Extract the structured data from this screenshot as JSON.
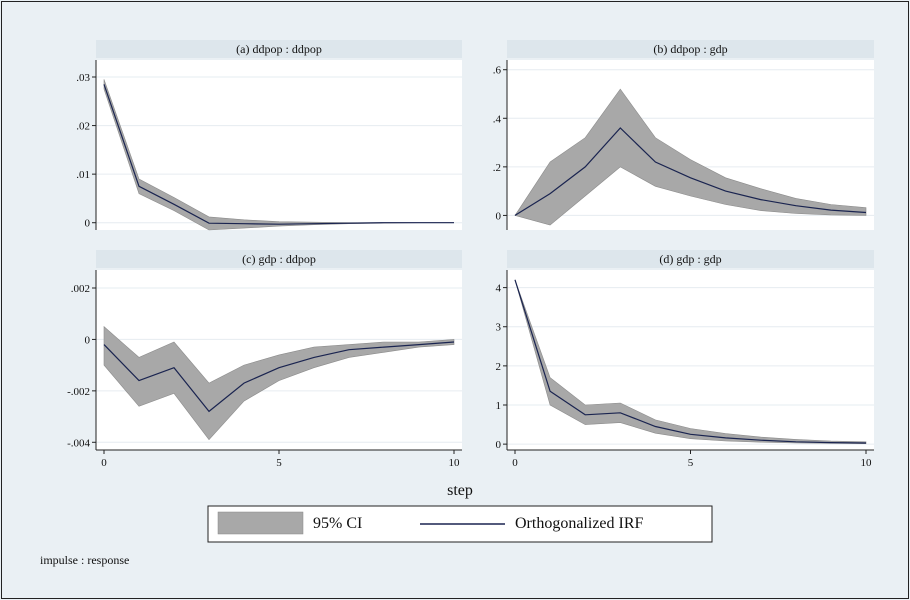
{
  "colors": {
    "page_bg": "#eaf0f4",
    "plot_bg": "#ffffff",
    "strip_bg": "#dde6ec",
    "ci_fill": "#a8a8a8",
    "line": "#1a2450",
    "grid": "#e6ecf0"
  },
  "x_axis_label": "step",
  "note": "impulse : response",
  "legend": {
    "ci_label": "95% CI",
    "line_label": "Orthogonalized IRF",
    "position": "bottom"
  },
  "chart_data": [
    {
      "type": "area",
      "title": "(a) ddpop : ddpop",
      "x": [
        0,
        1,
        2,
        3,
        4,
        5,
        6,
        7,
        8,
        9,
        10
      ],
      "irf": [
        0.0285,
        0.0075,
        0.0038,
        -0.0001,
        -0.0002,
        -0.0003,
        -0.0002,
        -0.0001,
        0.0,
        0.0,
        0.0
      ],
      "lower": [
        0.0275,
        0.006,
        0.0025,
        -0.0015,
        -0.0011,
        -0.0007,
        -0.0004,
        -0.0002,
        -0.0001,
        0.0,
        0.0
      ],
      "upper": [
        0.0295,
        0.009,
        0.0052,
        0.0012,
        0.0006,
        0.0002,
        0.0001,
        0.0,
        0.0,
        0.0,
        0.0
      ],
      "ylim": [
        -0.0015,
        0.0335
      ],
      "yticks": [
        0,
        0.01,
        0.02,
        0.03
      ],
      "ytick_labels": [
        "0",
        ".01",
        ".02",
        ".03"
      ],
      "xticks": [
        0,
        5,
        10
      ],
      "xtick_labels": [
        "0",
        "5",
        "10"
      ],
      "show_x_ticks": false
    },
    {
      "type": "area",
      "title": "(b) ddpop : gdp",
      "x": [
        0,
        1,
        2,
        3,
        4,
        5,
        6,
        7,
        8,
        9,
        10
      ],
      "irf": [
        0,
        0.09,
        0.2,
        0.36,
        0.22,
        0.155,
        0.1,
        0.065,
        0.04,
        0.022,
        0.012
      ],
      "lower": [
        0,
        -0.04,
        0.08,
        0.2,
        0.12,
        0.08,
        0.045,
        0.02,
        0.008,
        0.002,
        0.0
      ],
      "upper": [
        0,
        0.22,
        0.32,
        0.52,
        0.32,
        0.23,
        0.155,
        0.11,
        0.07,
        0.045,
        0.032
      ],
      "ylim": [
        -0.06,
        0.64
      ],
      "yticks": [
        0,
        0.2,
        0.4,
        0.6
      ],
      "ytick_labels": [
        "0",
        ".2",
        ".4",
        ".6"
      ],
      "xticks": [
        0,
        5,
        10
      ],
      "xtick_labels": [
        "0",
        "5",
        "10"
      ],
      "show_x_ticks": false
    },
    {
      "type": "area",
      "title": "(c) gdp : ddpop",
      "x": [
        0,
        1,
        2,
        3,
        4,
        5,
        6,
        7,
        8,
        9,
        10
      ],
      "irf": [
        -0.0002,
        -0.0016,
        -0.0011,
        -0.0028,
        -0.0017,
        -0.0011,
        -0.0007,
        -0.0004,
        -0.0003,
        -0.0002,
        -0.0001
      ],
      "lower": [
        -0.001,
        -0.0026,
        -0.0021,
        -0.0039,
        -0.0024,
        -0.0016,
        -0.0011,
        -0.0007,
        -0.0005,
        -0.0003,
        -0.0002
      ],
      "upper": [
        0.0005,
        -0.0007,
        -0.0001,
        -0.0017,
        -0.001,
        -0.0006,
        -0.0003,
        -0.0002,
        -0.0001,
        -0.0001,
        0.0
      ],
      "ylim": [
        -0.0043,
        0.0027
      ],
      "yticks": [
        -0.004,
        -0.002,
        0,
        0.002
      ],
      "ytick_labels": [
        "-.004",
        "-.002",
        "0",
        ".002"
      ],
      "xticks": [
        0,
        5,
        10
      ],
      "xtick_labels": [
        "0",
        "5",
        "10"
      ],
      "show_x_ticks": true
    },
    {
      "type": "area",
      "title": "(d) gdp : gdp",
      "x": [
        0,
        1,
        2,
        3,
        4,
        5,
        6,
        7,
        8,
        9,
        10
      ],
      "irf": [
        4.2,
        1.35,
        0.75,
        0.8,
        0.45,
        0.25,
        0.16,
        0.1,
        0.06,
        0.04,
        0.03
      ],
      "lower": [
        4.2,
        1.0,
        0.5,
        0.55,
        0.28,
        0.14,
        0.08,
        0.05,
        0.03,
        0.02,
        0.01
      ],
      "upper": [
        4.2,
        1.7,
        1.0,
        1.05,
        0.62,
        0.4,
        0.27,
        0.18,
        0.12,
        0.08,
        0.06
      ],
      "ylim": [
        -0.15,
        4.45
      ],
      "yticks": [
        0,
        1,
        2,
        3,
        4
      ],
      "ytick_labels": [
        "0",
        "1",
        "2",
        "3",
        "4"
      ],
      "xticks": [
        0,
        5,
        10
      ],
      "xtick_labels": [
        "0",
        "5",
        "10"
      ],
      "show_x_ticks": true
    }
  ]
}
